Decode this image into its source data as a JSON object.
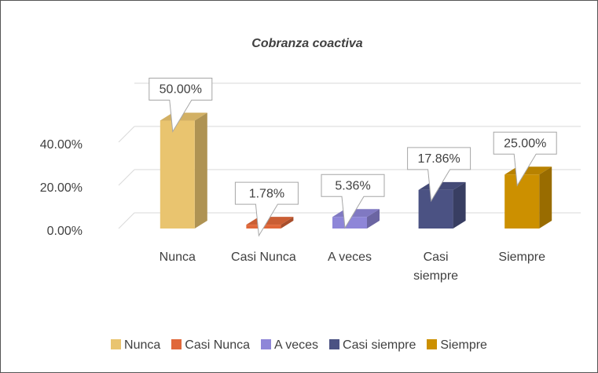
{
  "chart_data": {
    "type": "bar3d",
    "title": "Cobranza coactiva",
    "categories": [
      "Nunca",
      "Casi Nunca",
      "A veces",
      "Casi siempre",
      "Siempre"
    ],
    "values": [
      50,
      1.78,
      5.36,
      17.86,
      25
    ],
    "value_labels": [
      "50.00%",
      "1.78%",
      "5.36%",
      "17.86%",
      "25.00%"
    ],
    "colors": [
      "#e9c46f",
      "#e0683a",
      "#8e86d8",
      "#4b5283",
      "#cc9000"
    ],
    "ylim": [
      0,
      60
    ],
    "yticks": [
      {
        "value": 0,
        "label": "0.00%"
      },
      {
        "value": 20,
        "label": "20.00%"
      },
      {
        "value": 40,
        "label": "40.00%"
      }
    ],
    "grid": true,
    "legend": "bottom"
  }
}
